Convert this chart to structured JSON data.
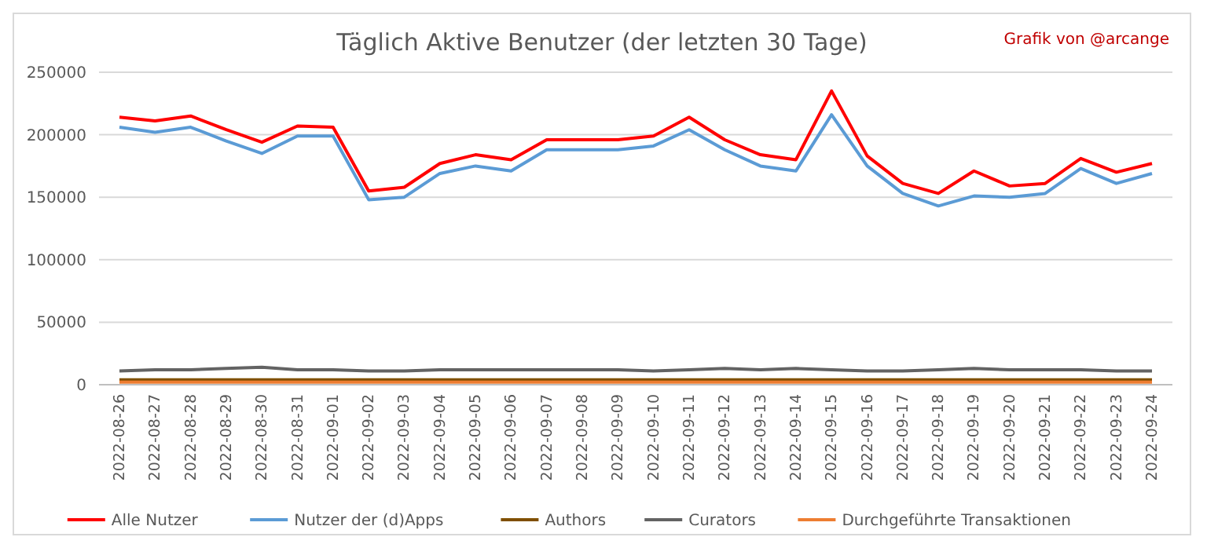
{
  "chart_data": {
    "type": "line",
    "title": "Täglich Aktive Benutzer (der letzten 30 Tage)",
    "annotations": [
      "Grafik von @arcange"
    ],
    "categories": [
      "2022-08-26",
      "2022-08-27",
      "2022-08-28",
      "2022-08-29",
      "2022-08-30",
      "2022-08-31",
      "2022-09-01",
      "2022-09-02",
      "2022-09-03",
      "2022-09-04",
      "2022-09-05",
      "2022-09-06",
      "2022-09-07",
      "2022-09-08",
      "2022-09-09",
      "2022-09-10",
      "2022-09-11",
      "2022-09-12",
      "2022-09-13",
      "2022-09-14",
      "2022-09-15",
      "2022-09-16",
      "2022-09-17",
      "2022-09-18",
      "2022-09-19",
      "2022-09-20",
      "2022-09-21",
      "2022-09-22",
      "2022-09-23",
      "2022-09-24"
    ],
    "series": [
      {
        "name": "Alle Nutzer",
        "color": "#ff0000",
        "values": [
          214000,
          211000,
          215000,
          204000,
          194000,
          207000,
          206000,
          155000,
          158000,
          177000,
          184000,
          180000,
          196000,
          196000,
          196000,
          199000,
          214000,
          196000,
          184000,
          180000,
          235000,
          183000,
          161000,
          153000,
          171000,
          159000,
          161000,
          181000,
          170000,
          177000
        ]
      },
      {
        "name": "Nutzer der (d)Apps",
        "color": "#5b9bd5",
        "values": [
          206000,
          202000,
          206000,
          195000,
          185000,
          199000,
          199000,
          148000,
          150000,
          169000,
          175000,
          171000,
          188000,
          188000,
          188000,
          191000,
          204000,
          188000,
          175000,
          171000,
          216000,
          175000,
          153000,
          143000,
          151000,
          150000,
          153000,
          173000,
          161000,
          169000
        ]
      },
      {
        "name": "Authors",
        "color": "#7f4f00",
        "values": [
          4000,
          4000,
          4000,
          4000,
          4000,
          4000,
          4000,
          4000,
          4000,
          4000,
          4000,
          4000,
          4000,
          4000,
          4000,
          4000,
          4000,
          4000,
          4000,
          4000,
          4000,
          4000,
          4000,
          4000,
          4000,
          4000,
          4000,
          4000,
          4000,
          4000
        ]
      },
      {
        "name": "Curators",
        "color": "#636363",
        "values": [
          11000,
          12000,
          12000,
          13000,
          14000,
          12000,
          12000,
          11000,
          11000,
          12000,
          12000,
          12000,
          12000,
          12000,
          12000,
          11000,
          12000,
          13000,
          12000,
          13000,
          12000,
          11000,
          11000,
          12000,
          13000,
          12000,
          12000,
          12000,
          11000,
          11000
        ]
      },
      {
        "name": "Durchgeführte Transaktionen",
        "color": "#ed7d31",
        "values": [
          2000,
          2000,
          2000,
          2000,
          2000,
          2000,
          2000,
          2000,
          2000,
          2000,
          2000,
          2000,
          2000,
          2000,
          2000,
          2000,
          2000,
          2000,
          2000,
          2000,
          2000,
          2000,
          2000,
          2000,
          2000,
          2000,
          2000,
          2000,
          2000,
          2000
        ]
      }
    ],
    "ylim": [
      0,
      250000
    ],
    "yticks": [
      0,
      50000,
      100000,
      150000,
      200000,
      250000
    ],
    "grid": "y",
    "legend": "bottom",
    "marker": "none",
    "line_style": "solid"
  }
}
